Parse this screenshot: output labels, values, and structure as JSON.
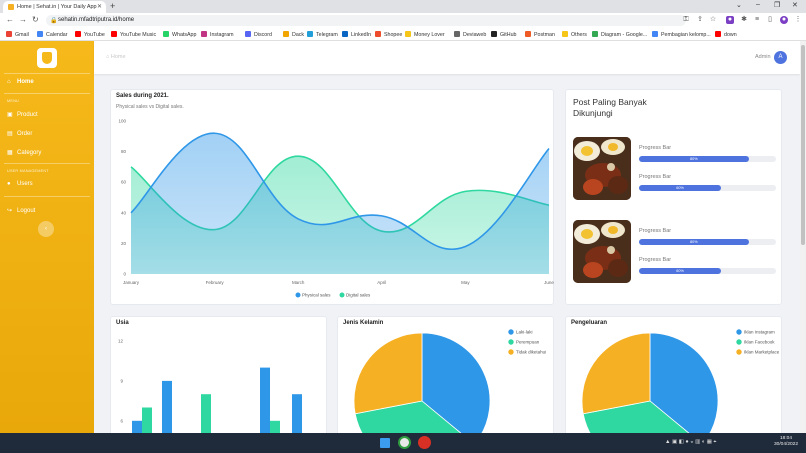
{
  "browser": {
    "tab_title": "Home | Sehat.in | Your Daily App",
    "url": "sehatin.mfadtriputra.id/home",
    "bookmarks": [
      {
        "label": "Gmail",
        "color": "#ea4335"
      },
      {
        "label": "Calendar",
        "color": "#4285f4"
      },
      {
        "label": "YouTube",
        "color": "#ff0000"
      },
      {
        "label": "YouTube Music",
        "color": "#ff0000"
      },
      {
        "label": "WhatsApp",
        "color": "#25d366"
      },
      {
        "label": "Instagram",
        "color": "#c13584"
      },
      {
        "label": "Discord",
        "color": "#5865f2"
      },
      {
        "label": "Dack",
        "color": "#f0a500"
      },
      {
        "label": "Telegram",
        "color": "#229ed9"
      },
      {
        "label": "LinkedIn",
        "color": "#0a66c2"
      },
      {
        "label": "Shopee",
        "color": "#ee4d2d"
      },
      {
        "label": "Money Lover",
        "color": "#f5c518"
      },
      {
        "label": "Deviaweb",
        "color": "#666666"
      },
      {
        "label": "GitHub",
        "color": "#222222"
      },
      {
        "label": "Postman",
        "color": "#ef5b25"
      },
      {
        "label": "Others",
        "color": "#f5c518"
      },
      {
        "label": "Diagram - Google...",
        "color": "#34a853"
      },
      {
        "label": "Pembagian kelomp...",
        "color": "#4285f4"
      },
      {
        "label": "down",
        "color": "#ff0000"
      }
    ]
  },
  "sidebar": {
    "items": [
      {
        "label": "Home",
        "icon": "home-icon",
        "glyph": "⌂"
      },
      {
        "label": "Product",
        "icon": "box-icon",
        "glyph": "▣"
      },
      {
        "label": "Order",
        "icon": "cart-icon",
        "glyph": "▤"
      },
      {
        "label": "Category",
        "icon": "tag-icon",
        "glyph": "▦"
      },
      {
        "label": "Users",
        "icon": "user-icon",
        "glyph": "●"
      },
      {
        "label": "Logout",
        "icon": "logout-icon",
        "glyph": "↪"
      }
    ],
    "heading_menu": "MENU",
    "heading_user": "USER MANAGEMENT",
    "collapse_glyph": "‹"
  },
  "topbar": {
    "breadcrumb": "Home",
    "admin_label": "Admin",
    "avatar_letter": "A"
  },
  "sales_card": {
    "title": "Sales during 2021.",
    "subtitle": "Physical sales vs Digital sales."
  },
  "posts_card": {
    "title_line1": "Post Paling Banyak",
    "title_line2": "Dikunjungi",
    "posts": [
      {
        "bars": [
          {
            "label": "Progress Bar",
            "value": 80
          },
          {
            "label": "Progress Bar",
            "value": 60
          }
        ]
      },
      {
        "bars": [
          {
            "label": "Progress Bar",
            "value": 80
          },
          {
            "label": "Progress Bar",
            "value": 60
          }
        ]
      }
    ]
  },
  "chart_data": [
    {
      "type": "area",
      "title": "Sales during 2021.",
      "subtitle": "Physical sales vs Digital sales.",
      "categories": [
        "January",
        "February",
        "March",
        "April",
        "May",
        "June"
      ],
      "ylim": [
        0,
        100
      ],
      "yticks": [
        0,
        20,
        40,
        60,
        80,
        100
      ],
      "series": [
        {
          "name": "Physical sales",
          "color": "#2f97e8",
          "values": [
            40,
            92,
            36,
            38,
            18,
            82
          ]
        },
        {
          "name": "Digital sales",
          "color": "#2fd8a0",
          "values": [
            70,
            29,
            77,
            28,
            54,
            45
          ]
        }
      ],
      "legend": "bottom"
    },
    {
      "type": "bar",
      "title": "Usia",
      "yticks_visible": [
        6,
        9,
        12
      ],
      "series": [
        {
          "color": "#2f97e8",
          "values": [
            6,
            9,
            null,
            null,
            10,
            8
          ]
        },
        {
          "color": "#2fd8a0",
          "values": [
            7,
            null,
            8,
            null,
            6,
            null
          ]
        }
      ]
    },
    {
      "type": "pie",
      "title": "Jenis Kelamin",
      "legend": "top-right",
      "labels": [
        "Laki-laki",
        "Perempuan",
        "Tidak diketahui"
      ],
      "colors": [
        "#2f97e8",
        "#2fd8a0",
        "#f6b024"
      ],
      "values": [
        36,
        36,
        28
      ]
    },
    {
      "type": "pie",
      "title": "Pengeluaran",
      "legend": "top-right",
      "labels": [
        "Iklan Instagram",
        "Iklan Facebook",
        "Iklan Marketplace"
      ],
      "colors": [
        "#2f97e8",
        "#2fd8a0",
        "#f6b024"
      ],
      "values": [
        36,
        36,
        28
      ]
    }
  ],
  "taskbar": {
    "time": "18:04",
    "date": "30/04/2022"
  }
}
